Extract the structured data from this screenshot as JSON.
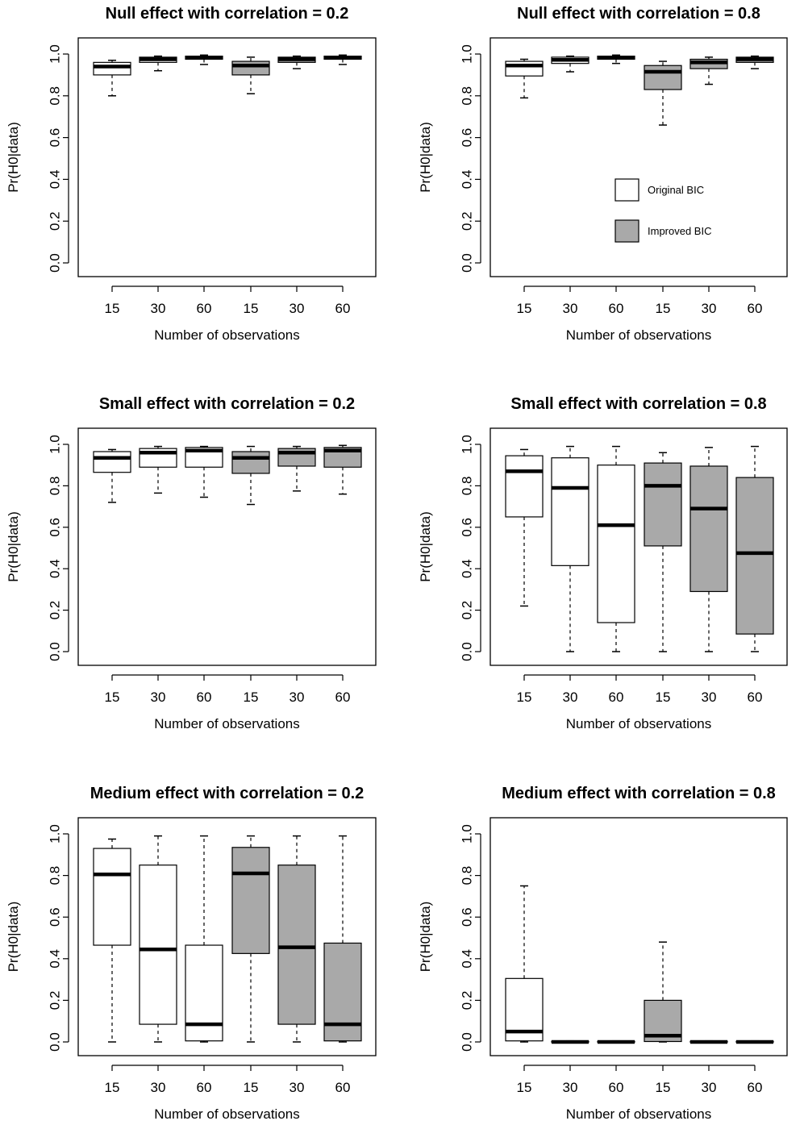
{
  "chart_data": [
    {
      "type": "boxplot",
      "title": "Null effect with correlation = 0.2",
      "xlabel": "Number of observations",
      "ylabel": "Pr(H0|data)",
      "ylim": [
        0,
        1
      ],
      "yticks": [
        "0.0",
        "0.2",
        "0.4",
        "0.6",
        "0.8",
        "1.0"
      ],
      "categories": [
        "15",
        "30",
        "60",
        "15",
        "30",
        "60"
      ],
      "series": [
        {
          "name": "Original BIC",
          "boxes": [
            {
              "whislo": 0.8,
              "q1": 0.9,
              "med": 0.94,
              "q3": 0.96,
              "whishi": 0.97
            },
            {
              "whislo": 0.92,
              "q1": 0.96,
              "med": 0.975,
              "q3": 0.985,
              "whishi": 0.99
            },
            {
              "whislo": 0.95,
              "q1": 0.975,
              "med": 0.983,
              "q3": 0.99,
              "whishi": 0.995
            }
          ]
        },
        {
          "name": "Improved BIC",
          "boxes": [
            {
              "whislo": 0.81,
              "q1": 0.9,
              "med": 0.945,
              "q3": 0.965,
              "whishi": 0.985
            },
            {
              "whislo": 0.93,
              "q1": 0.96,
              "med": 0.975,
              "q3": 0.985,
              "whishi": 0.99
            },
            {
              "whislo": 0.95,
              "q1": 0.975,
              "med": 0.983,
              "q3": 0.99,
              "whishi": 0.995
            }
          ]
        }
      ]
    },
    {
      "type": "boxplot",
      "title": "Null effect with correlation = 0.8",
      "xlabel": "Number of observations",
      "ylabel": "Pr(H0|data)",
      "ylim": [
        0,
        1
      ],
      "yticks": [
        "0.0",
        "0.2",
        "0.4",
        "0.6",
        "0.8",
        "1.0"
      ],
      "categories": [
        "15",
        "30",
        "60",
        "15",
        "30",
        "60"
      ],
      "legend": [
        {
          "label": "Original BIC",
          "color": "#ffffff"
        },
        {
          "label": "Improved BIC",
          "color": "#a9a9a9"
        }
      ],
      "series": [
        {
          "name": "Original BIC",
          "boxes": [
            {
              "whislo": 0.79,
              "q1": 0.895,
              "med": 0.945,
              "q3": 0.965,
              "whishi": 0.975
            },
            {
              "whislo": 0.915,
              "q1": 0.955,
              "med": 0.972,
              "q3": 0.985,
              "whishi": 0.99
            },
            {
              "whislo": 0.955,
              "q1": 0.975,
              "med": 0.983,
              "q3": 0.99,
              "whishi": 0.995
            }
          ]
        },
        {
          "name": "Improved BIC",
          "boxes": [
            {
              "whislo": 0.66,
              "q1": 0.83,
              "med": 0.915,
              "q3": 0.945,
              "whishi": 0.965
            },
            {
              "whislo": 0.855,
              "q1": 0.93,
              "med": 0.96,
              "q3": 0.975,
              "whishi": 0.985
            },
            {
              "whislo": 0.93,
              "q1": 0.96,
              "med": 0.975,
              "q3": 0.985,
              "whishi": 0.99
            }
          ]
        }
      ]
    },
    {
      "type": "boxplot",
      "title": "Small effect with correlation = 0.2",
      "xlabel": "Number of observations",
      "ylabel": "Pr(H0|data)",
      "ylim": [
        0,
        1
      ],
      "yticks": [
        "0.0",
        "0.2",
        "0.4",
        "0.6",
        "0.8",
        "1.0"
      ],
      "categories": [
        "15",
        "30",
        "60",
        "15",
        "30",
        "60"
      ],
      "series": [
        {
          "name": "Original BIC",
          "boxes": [
            {
              "whislo": 0.72,
              "q1": 0.865,
              "med": 0.935,
              "q3": 0.965,
              "whishi": 0.975
            },
            {
              "whislo": 0.765,
              "q1": 0.89,
              "med": 0.96,
              "q3": 0.98,
              "whishi": 0.99
            },
            {
              "whislo": 0.745,
              "q1": 0.89,
              "med": 0.97,
              "q3": 0.985,
              "whishi": 0.99
            }
          ]
        },
        {
          "name": "Improved BIC",
          "boxes": [
            {
              "whislo": 0.71,
              "q1": 0.86,
              "med": 0.935,
              "q3": 0.965,
              "whishi": 0.99
            },
            {
              "whislo": 0.775,
              "q1": 0.895,
              "med": 0.96,
              "q3": 0.98,
              "whishi": 0.99
            },
            {
              "whislo": 0.76,
              "q1": 0.89,
              "med": 0.97,
              "q3": 0.985,
              "whishi": 0.995
            }
          ]
        }
      ]
    },
    {
      "type": "boxplot",
      "title": "Small effect with correlation = 0.8",
      "xlabel": "Number of observations",
      "ylabel": "Pr(H0|data)",
      "ylim": [
        0,
        1
      ],
      "yticks": [
        "0.0",
        "0.2",
        "0.4",
        "0.6",
        "0.8",
        "1.0"
      ],
      "categories": [
        "15",
        "30",
        "60",
        "15",
        "30",
        "60"
      ],
      "series": [
        {
          "name": "Original BIC",
          "boxes": [
            {
              "whislo": 0.22,
              "q1": 0.65,
              "med": 0.87,
              "q3": 0.945,
              "whishi": 0.975
            },
            {
              "whislo": 0.0,
              "q1": 0.415,
              "med": 0.79,
              "q3": 0.935,
              "whishi": 0.99
            },
            {
              "whislo": 0.0,
              "q1": 0.14,
              "med": 0.61,
              "q3": 0.9,
              "whishi": 0.99
            }
          ]
        },
        {
          "name": "Improved BIC",
          "boxes": [
            {
              "whislo": 0.0,
              "q1": 0.51,
              "med": 0.8,
              "q3": 0.91,
              "whishi": 0.96
            },
            {
              "whislo": 0.0,
              "q1": 0.29,
              "med": 0.69,
              "q3": 0.895,
              "whishi": 0.985
            },
            {
              "whislo": 0.0,
              "q1": 0.085,
              "med": 0.475,
              "q3": 0.84,
              "whishi": 0.99
            }
          ]
        }
      ]
    },
    {
      "type": "boxplot",
      "title": "Medium effect with correlation = 0.2",
      "xlabel": "Number of observations",
      "ylabel": "Pr(H0|data)",
      "ylim": [
        0,
        1
      ],
      "yticks": [
        "0.0",
        "0.2",
        "0.4",
        "0.6",
        "0.8",
        "1.0"
      ],
      "categories": [
        "15",
        "30",
        "60",
        "15",
        "30",
        "60"
      ],
      "series": [
        {
          "name": "Original BIC",
          "boxes": [
            {
              "whislo": 0.0,
              "q1": 0.465,
              "med": 0.805,
              "q3": 0.93,
              "whishi": 0.975
            },
            {
              "whislo": 0.0,
              "q1": 0.085,
              "med": 0.445,
              "q3": 0.85,
              "whishi": 0.99
            },
            {
              "whislo": 0.0,
              "q1": 0.005,
              "med": 0.085,
              "q3": 0.465,
              "whishi": 0.99
            }
          ]
        },
        {
          "name": "Improved BIC",
          "boxes": [
            {
              "whislo": 0.0,
              "q1": 0.425,
              "med": 0.81,
              "q3": 0.935,
              "whishi": 0.99
            },
            {
              "whislo": 0.0,
              "q1": 0.085,
              "med": 0.455,
              "q3": 0.85,
              "whishi": 0.99
            },
            {
              "whislo": 0.0,
              "q1": 0.005,
              "med": 0.085,
              "q3": 0.475,
              "whishi": 0.99
            }
          ]
        }
      ]
    },
    {
      "type": "boxplot",
      "title": "Medium effect with correlation = 0.8",
      "xlabel": "Number of observations",
      "ylabel": "Pr(H0|data)",
      "ylim": [
        0,
        1
      ],
      "yticks": [
        "0.0",
        "0.2",
        "0.4",
        "0.6",
        "0.8",
        "1.0"
      ],
      "categories": [
        "15",
        "30",
        "60",
        "15",
        "30",
        "60"
      ],
      "series": [
        {
          "name": "Original BIC",
          "boxes": [
            {
              "whislo": 0.0,
              "q1": 0.005,
              "med": 0.05,
              "q3": 0.305,
              "whishi": 0.75
            },
            {
              "whislo": 0.0,
              "q1": 0.0,
              "med": 0.0,
              "q3": 0.003,
              "whishi": 0.005
            },
            {
              "whislo": 0.0,
              "q1": 0.0,
              "med": 0.0,
              "q3": 0.003,
              "whishi": 0.005
            }
          ]
        },
        {
          "name": "Improved BIC",
          "boxes": [
            {
              "whislo": 0.0,
              "q1": 0.002,
              "med": 0.03,
              "q3": 0.2,
              "whishi": 0.48
            },
            {
              "whislo": 0.0,
              "q1": 0.0,
              "med": 0.0,
              "q3": 0.003,
              "whishi": 0.005
            },
            {
              "whislo": 0.0,
              "q1": 0.0,
              "med": 0.0,
              "q3": 0.003,
              "whishi": 0.005
            }
          ]
        }
      ]
    }
  ],
  "colors": {
    "original_fill": "#ffffff",
    "improved_fill": "#a9a9a9",
    "stroke": "#000000"
  }
}
